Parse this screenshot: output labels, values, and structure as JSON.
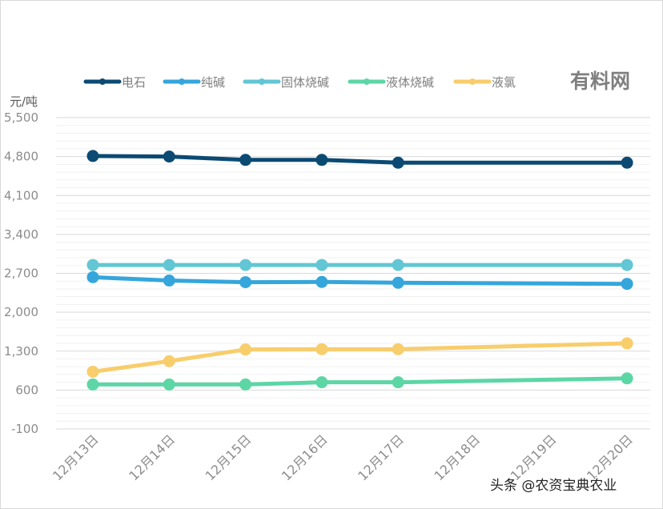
{
  "colors": {
    "电石": "#0b4a73",
    "纯碱": "#35a6db",
    "固体烧碱": "#62c6d4",
    "液体烧碱": "#5dd6a6",
    "液氯": "#f8cd6c"
  },
  "brand": "有料网",
  "footer": "头条 @农资宝典农业",
  "chart_data": {
    "type": "line",
    "ylabel": "元/吨",
    "ylim": [
      -100,
      5500
    ],
    "yticks": [
      "5,500",
      "4,800",
      "4,100",
      "3,400",
      "2,700",
      "2,000",
      "1,300",
      "600",
      "-100"
    ],
    "ytick_values": [
      5500,
      4800,
      4100,
      3400,
      2700,
      2000,
      1300,
      600,
      -100
    ],
    "grid": true,
    "legend": "top",
    "categories": [
      "12月13日",
      "12月14日",
      "12月15日",
      "12月16日",
      "12月17日",
      "12月18日",
      "12月19日",
      "12月20日"
    ],
    "series": [
      {
        "name": "电石",
        "values": [
          4810,
          4800,
          4740,
          4740,
          4690,
          null,
          null,
          4690
        ]
      },
      {
        "name": "纯碱",
        "values": [
          2630,
          2570,
          2540,
          2545,
          2530,
          null,
          null,
          2510
        ]
      },
      {
        "name": "固体烧碱",
        "values": [
          2850,
          2850,
          2850,
          2850,
          2850,
          null,
          null,
          2850
        ]
      },
      {
        "name": "液体烧碱",
        "values": [
          700,
          700,
          700,
          740,
          740,
          null,
          null,
          810
        ]
      },
      {
        "name": "液氯",
        "values": [
          930,
          1120,
          1330,
          1335,
          1335,
          null,
          null,
          1440
        ]
      }
    ]
  }
}
